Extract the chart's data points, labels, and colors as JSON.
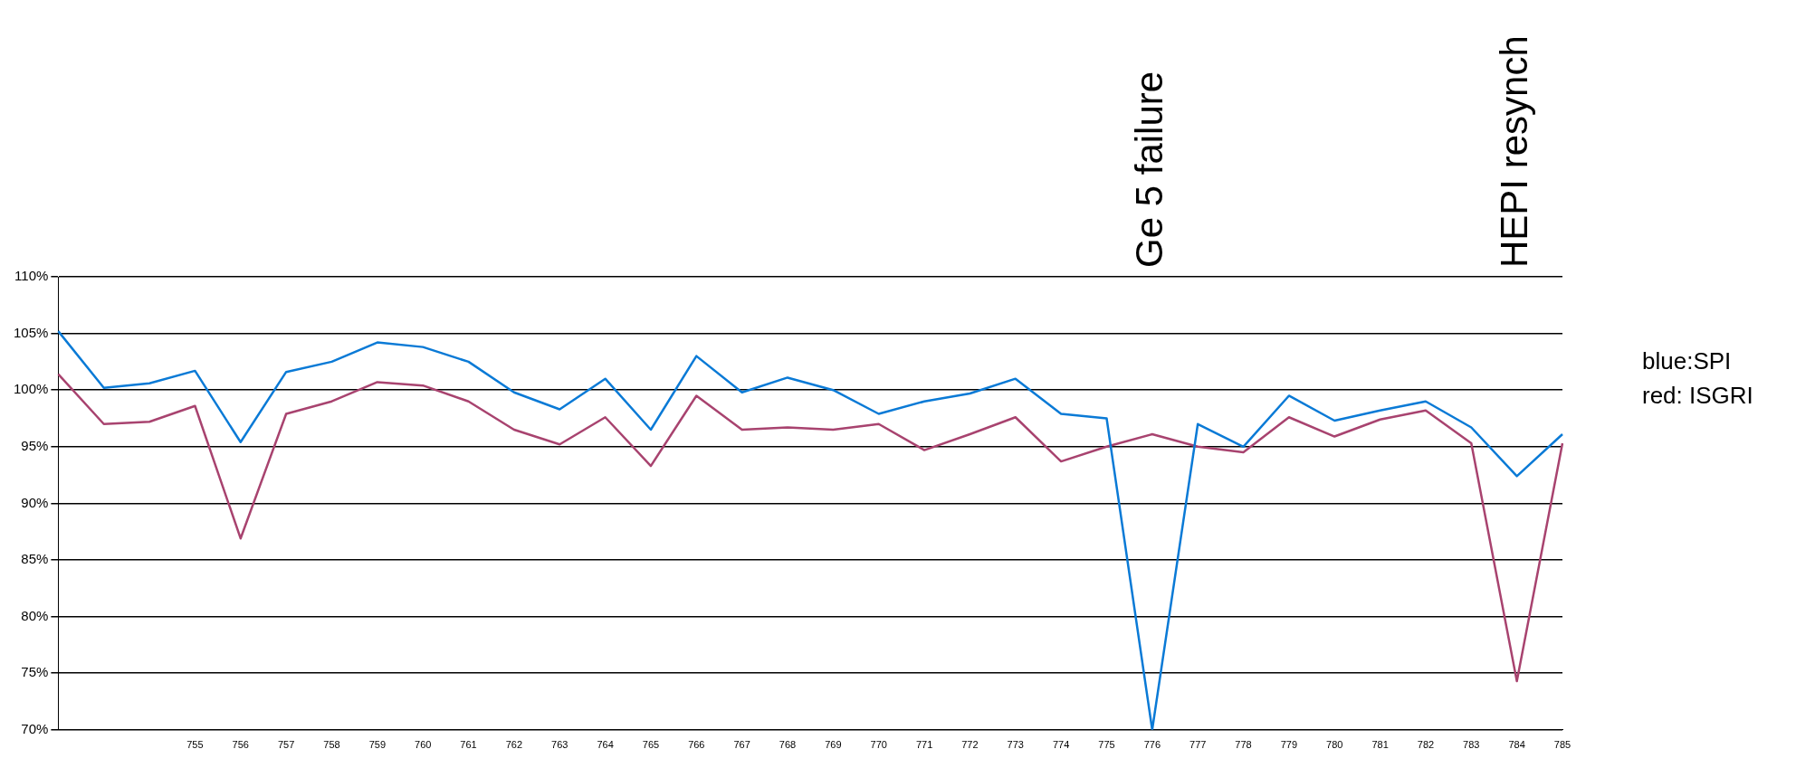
{
  "chart_data": {
    "type": "line",
    "categories": [
      null,
      null,
      null,
      "755",
      "756",
      "757",
      "758",
      "759",
      "760",
      "761",
      "762",
      "763",
      "764",
      "765",
      "766",
      "767",
      "768",
      "769",
      "770",
      "771",
      "772",
      "773",
      "774",
      "775",
      "776",
      "777",
      "778",
      "779",
      "780",
      "781",
      "782",
      "783",
      "784",
      "785"
    ],
    "series": [
      {
        "color": "#0a7ad6",
        "values": [
          105.2,
          100.2,
          100.6,
          101.7,
          95.4,
          101.6,
          102.5,
          104.2,
          103.8,
          102.5,
          99.8,
          98.3,
          101.0,
          96.5,
          103.0,
          99.8,
          101.1,
          100.0,
          97.9,
          99.0,
          99.7,
          101.0,
          97.9,
          97.5,
          70,
          97.0,
          95.0,
          99.5,
          97.3,
          98.2,
          99.0,
          96.7,
          92.4,
          96.1
        ]
      },
      {
        "color": "#a8436f",
        "values": [
          101.4,
          97.0,
          97.2,
          98.6,
          86.9,
          97.9,
          99.0,
          100.7,
          100.4,
          99.0,
          96.5,
          95.2,
          97.6,
          93.3,
          99.5,
          96.5,
          96.7,
          96.5,
          97.0,
          94.7,
          96.1,
          97.6,
          93.7,
          95.0,
          96.1,
          95.0,
          94.5,
          97.6,
          95.9,
          97.4,
          98.2,
          95.3,
          74.3,
          95.3
        ]
      }
    ],
    "ylim": [
      70,
      110
    ],
    "yticks": [
      {
        "value": 70,
        "label": "70%"
      },
      {
        "value": 75,
        "label": "75%"
      },
      {
        "value": 80,
        "label": "80%"
      },
      {
        "value": 85,
        "label": "85%"
      },
      {
        "value": 90,
        "label": "90%"
      },
      {
        "value": 95,
        "label": "95%"
      },
      {
        "value": 100,
        "label": "100%"
      },
      {
        "value": 105,
        "label": "105%"
      },
      {
        "value": 110,
        "label": "110%"
      }
    ],
    "grid": "y",
    "marker": "none",
    "line_style": "solid",
    "legend": false,
    "annotations": [
      "Ge 5 failure",
      "HEPI resynch",
      "blue:SPI",
      "red: ISGRI"
    ]
  }
}
